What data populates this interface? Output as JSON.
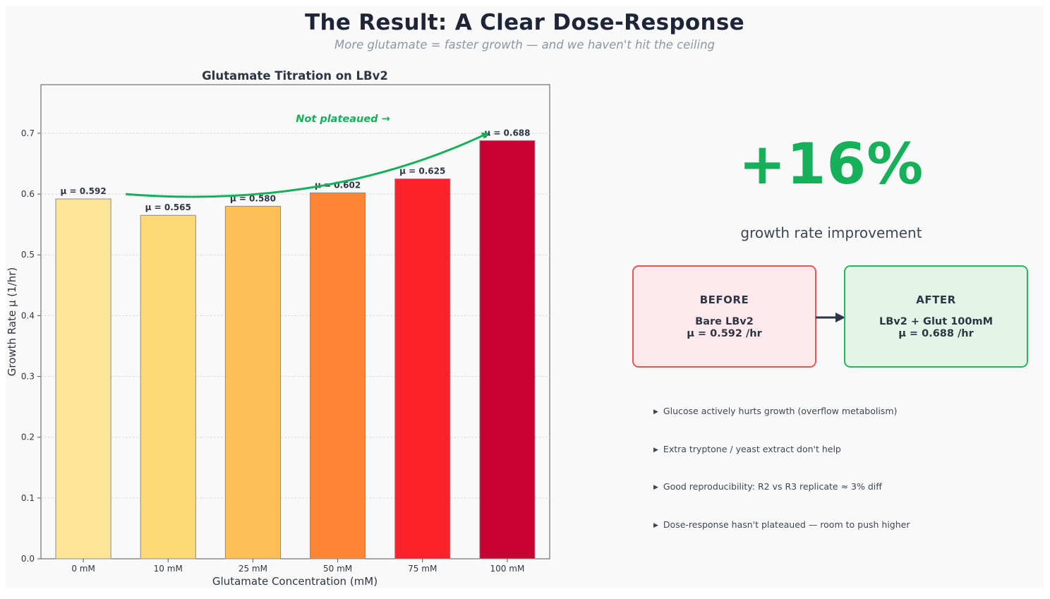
{
  "title": "The Result: A Clear Dose-Response",
  "subtitle": "More glutamate = faster growth — and we haven't hit the ceiling",
  "chart_data": {
    "type": "bar",
    "title": "Glutamate Titration on LBv2",
    "xlabel": "Glutamate Concentration (mM)",
    "ylabel": "Growth Rate μ (1/hr)",
    "categories": [
      "0 mM",
      "10 mM",
      "25 mM",
      "50 mM",
      "75 mM",
      "100 mM"
    ],
    "values": [
      0.592,
      0.565,
      0.58,
      0.602,
      0.625,
      0.688
    ],
    "data_labels": [
      "μ = 0.592",
      "μ = 0.565",
      "μ = 0.580",
      "μ = 0.602",
      "μ = 0.625",
      "μ = 0.688"
    ],
    "bar_colors": [
      "#fee598",
      "#fed976",
      "#febf59",
      "#fd8535",
      "#fc2229",
      "#c70233"
    ],
    "ylim": [
      0,
      0.78
    ],
    "yticks": [
      "0.0",
      "0.1",
      "0.2",
      "0.3",
      "0.4",
      "0.5",
      "0.6",
      "0.7"
    ],
    "grid": "horizontal",
    "annotation": {
      "text": "Not plateaued →",
      "color": "#16b05a",
      "arrow_from_value": 0.6,
      "arrow_to_value": 0.7
    }
  },
  "stat": {
    "value": "+16%",
    "label": "growth rate improvement",
    "color": "#16b05a"
  },
  "before": {
    "title": "BEFORE",
    "line1": "Bare LBv2",
    "line2": "μ = 0.592 /hr"
  },
  "after": {
    "title": "AFTER",
    "line1": "LBv2 + Glut 100mM",
    "line2": "μ = 0.688 /hr"
  },
  "bullets": [
    "Glucose actively hurts growth (overflow metabolism)",
    "Extra tryptone / yeast extract don't help",
    "Good reproducibility: R2 vs R3 replicate ≈ 3% diff",
    "Dose-response hasn't plateaued — room to push higher"
  ],
  "bullet_marker": "▶"
}
